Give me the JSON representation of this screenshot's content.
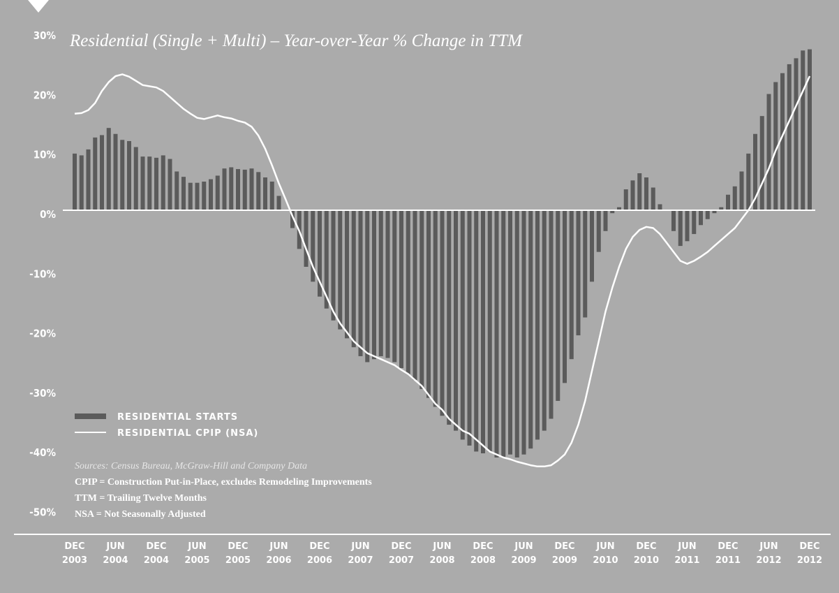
{
  "chart_data": {
    "type": "bar",
    "title": "Residential (Single + Multi) – Year-over-Year % Change in TTM",
    "categories": [
      "DEC\n2003",
      null,
      null,
      null,
      null,
      null,
      "JUN\n2004",
      null,
      null,
      null,
      null,
      null,
      "DEC\n2004",
      null,
      null,
      null,
      null,
      null,
      "JUN\n2005",
      null,
      null,
      null,
      null,
      null,
      "DEC\n2005",
      null,
      null,
      null,
      null,
      null,
      "JUN\n2006",
      null,
      null,
      null,
      null,
      null,
      "DEC\n2006",
      null,
      null,
      null,
      null,
      null,
      "JUN\n2007",
      null,
      null,
      null,
      null,
      null,
      "DEC\n2007",
      null,
      null,
      null,
      null,
      null,
      "JUN\n2008",
      null,
      null,
      null,
      null,
      null,
      "DEC\n2008",
      null,
      null,
      null,
      null,
      null,
      "JUN\n2009",
      null,
      null,
      null,
      null,
      null,
      "DEC\n2009",
      null,
      null,
      null,
      null,
      null,
      "JUN\n2010",
      null,
      null,
      null,
      null,
      null,
      "DEC\n2010",
      null,
      null,
      null,
      null,
      null,
      "JUN\n2011",
      null,
      null,
      null,
      null,
      null,
      "DEC\n2011",
      null,
      null,
      null,
      null,
      null,
      "JUN\n2012",
      null,
      null,
      null,
      null,
      null,
      "DEC\n2012"
    ],
    "series": [
      {
        "name": "RESIDENTIAL STARTS",
        "type": "bar",
        "color": "#5b5b5b",
        "values": [
          9.5,
          9.2,
          10.2,
          12.2,
          12.6,
          13.8,
          12.8,
          11.8,
          11.6,
          10.6,
          9.0,
          9.0,
          8.8,
          9.2,
          8.6,
          6.5,
          5.6,
          4.6,
          4.6,
          4.8,
          5.2,
          5.8,
          7.0,
          7.2,
          6.9,
          6.8,
          7.0,
          6.4,
          5.5,
          4.8,
          2.4,
          0,
          -3.0,
          -6.5,
          -9.5,
          -12.0,
          -14.5,
          -16.5,
          -18.5,
          -20.0,
          -21.5,
          -23.0,
          -24.5,
          -25.5,
          -25.0,
          -24.5,
          -24.8,
          -25.5,
          -26.5,
          -27.5,
          -28.5,
          -30.0,
          -31.5,
          -33.0,
          -34.5,
          -36.0,
          -37.0,
          -38.5,
          -39.5,
          -40.5,
          -40.8,
          -40.5,
          -41.5,
          -41.5,
          -41.0,
          -41.5,
          -41.0,
          -40.0,
          -38.5,
          -37.0,
          -35.0,
          -32.0,
          -29.0,
          -25.0,
          -21.0,
          -18.0,
          -12.0,
          -7.0,
          -3.5,
          -0.5,
          0.5,
          3.5,
          5.0,
          6.2,
          5.5,
          3.8,
          1.0,
          0,
          -3.5,
          -6.0,
          -5.2,
          -4.0,
          -2.5,
          -1.5,
          -0.5,
          0.5,
          2.6,
          4.0,
          6.5,
          9.5,
          12.8,
          15.8,
          19.5,
          21.5,
          23.0,
          24.5,
          25.5,
          26.8,
          27.0
        ]
      },
      {
        "name": "RESIDENTIAL CPIP (NSA)",
        "type": "line",
        "color": "#ffffff",
        "values": [
          16.2,
          16.3,
          16.8,
          18.0,
          20.0,
          21.5,
          22.5,
          22.8,
          22.4,
          21.7,
          21.0,
          20.8,
          20.6,
          20.0,
          19.0,
          18.0,
          17.0,
          16.2,
          15.5,
          15.3,
          15.6,
          15.9,
          15.6,
          15.4,
          15.0,
          14.7,
          14.0,
          12.5,
          10.3,
          7.5,
          4.5,
          1.8,
          -1.0,
          -3.5,
          -6.5,
          -9.5,
          -12.0,
          -14.5,
          -17.0,
          -19.0,
          -20.5,
          -22.0,
          -23.0,
          -24.0,
          -24.5,
          -25.0,
          -25.5,
          -26.0,
          -26.8,
          -27.5,
          -28.5,
          -29.5,
          -31.0,
          -32.5,
          -33.5,
          -35.0,
          -36.0,
          -37.0,
          -37.5,
          -38.5,
          -39.5,
          -40.5,
          -41.0,
          -41.5,
          -41.8,
          -42.2,
          -42.5,
          -42.8,
          -43.0,
          -43.0,
          -42.8,
          -42.0,
          -41.0,
          -39.0,
          -36.0,
          -32.0,
          -27.0,
          -22.0,
          -17.0,
          -13.0,
          -9.5,
          -6.5,
          -4.5,
          -3.3,
          -2.8,
          -3.0,
          -4.0,
          -5.5,
          -7.0,
          -8.5,
          -9.0,
          -8.5,
          -7.8,
          -7.0,
          -6.0,
          -5.0,
          -4.0,
          -3.0,
          -1.5,
          0,
          2.0,
          4.5,
          7.0,
          10.0,
          12.5,
          15.0,
          17.5,
          20.0,
          22.5
        ]
      }
    ],
    "ylim": [
      -50,
      30
    ],
    "yticks": [
      {
        "value": 30,
        "label": "30%"
      },
      {
        "value": 20,
        "label": "20%"
      },
      {
        "value": 10,
        "label": "10%"
      },
      {
        "value": 0,
        "label": "0%"
      },
      {
        "value": -10,
        "label": "-10%"
      },
      {
        "value": -20,
        "label": "-20%"
      },
      {
        "value": -30,
        "label": "-30%"
      },
      {
        "value": -40,
        "label": "-40%"
      },
      {
        "value": -50,
        "label": "-50%"
      }
    ],
    "notes": [
      "Sources: Census Bureau, McGraw-Hill and Company Data",
      "CPIP = Construction Put-in-Place, excludes Remodeling Improvements",
      "TTM = Trailing Twelve Months",
      "NSA = Not Seasonally Adjusted"
    ]
  }
}
